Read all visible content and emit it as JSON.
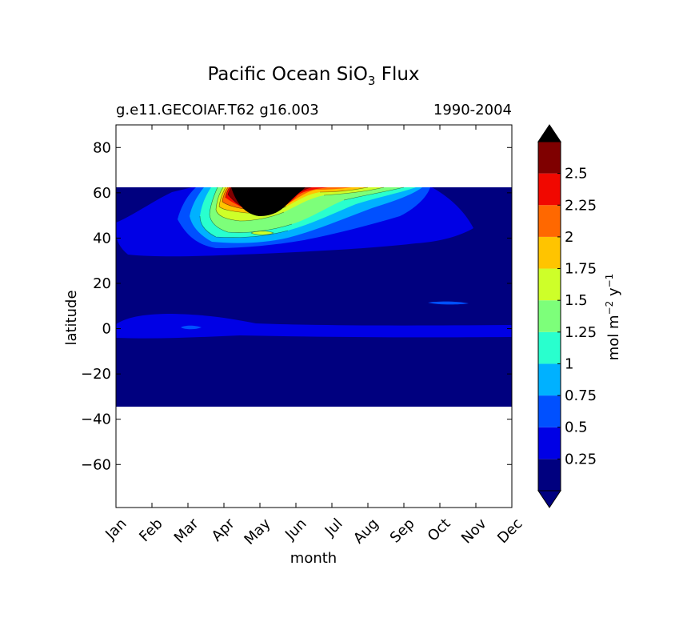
{
  "chart_data": {
    "type": "contour",
    "title_main": "Pacific Ocean SiO",
    "title_sub": "3",
    "title_suffix": " Flux",
    "subtitle_left": "g.e11.GECOIAF.T62 g16.003",
    "subtitle_right": "1990-2004",
    "xlabel": "month",
    "ylabel": "latitude",
    "x_ticks": [
      "Jan",
      "Feb",
      "Mar",
      "Apr",
      "May",
      "Jun",
      "Jul",
      "Aug",
      "Sep",
      "Oct",
      "Nov",
      "Dec"
    ],
    "y_ticks": [
      80,
      60,
      40,
      20,
      0,
      -20,
      -40,
      -60
    ],
    "y_tick_labels": [
      "80",
      "60",
      "40",
      "20",
      "0",
      "−20",
      "−40",
      "−60"
    ],
    "ylim": [
      -79,
      90
    ],
    "data_lat_range": [
      -34,
      62.5
    ],
    "colorbar": {
      "label_prefix": "mol m",
      "label_exp1": "−2",
      "label_mid": " y",
      "label_exp2": "−1",
      "levels": [
        0,
        0.25,
        0.5,
        0.75,
        1,
        1.25,
        1.5,
        1.75,
        2,
        2.25,
        2.5,
        2.75
      ],
      "tick_values": [
        0.25,
        0.5,
        0.75,
        1,
        1.25,
        1.5,
        1.75,
        2,
        2.25,
        2.5
      ],
      "tick_labels": [
        "0.25",
        "0.5",
        "0.75",
        "1",
        "1.25",
        "1.5",
        "1.75",
        "2",
        "2.25",
        "2.5"
      ],
      "colors": [
        "#00007f",
        "#0000e5",
        "#0050ff",
        "#00b1ff",
        "#29ffce",
        "#7dff7a",
        "#ceff29",
        "#ffc400",
        "#ff6800",
        "#f10800",
        "#7f0000"
      ],
      "under_color": "#00007f",
      "over_color": "#000000"
    },
    "contour_regions": [
      {
        "level": "0-0.25",
        "lat_range": [
          -34,
          62.5
        ],
        "months": "all",
        "description": "background flux"
      },
      {
        "level": "0.25-0.5",
        "lat_range": [
          33,
          62.5
        ],
        "months": "Jan-Oct",
        "description": "North Pacific band"
      },
      {
        "level": "0.25-0.5",
        "lat_range": [
          -4,
          6
        ],
        "months": "Jan-Dec",
        "description": "equatorial band"
      },
      {
        "level": "0.5-2.5",
        "lat_range": [
          40,
          62.5
        ],
        "months": "Mar-Sep",
        "description": "spring bloom"
      },
      {
        "level": ">2.75",
        "lat_range": [
          48,
          62.5
        ],
        "months": "Apr-Jun",
        "description": "peak flux at May"
      }
    ]
  }
}
